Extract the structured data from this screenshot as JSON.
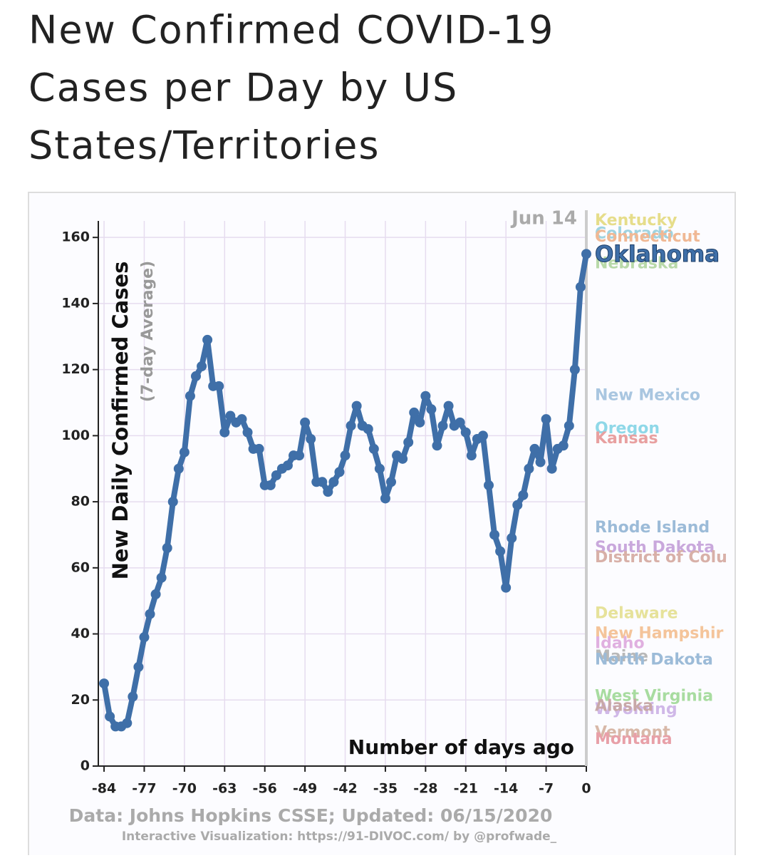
{
  "chart_data": {
    "type": "line",
    "title": [
      "New Confirmed COVID-19",
      "Cases per Day by US",
      "States/Territories"
    ],
    "ylabel": "New Daily Confirmed Cases",
    "ylabel_sub": "(7-day Average)",
    "xlabel": "Number of days ago",
    "date_annotation": "Jun 14",
    "source": "Data: Johns Hopkins CSSE; Updated: 06/15/2020",
    "credit": "Interactive Visualization: https://91-DIVOC.com/ by @profwade_",
    "xlim": [
      -85,
      0
    ],
    "ylim": [
      0,
      165
    ],
    "xticks": [
      -84,
      -77,
      -70,
      -63,
      -56,
      -49,
      -42,
      -35,
      -28,
      -21,
      -14,
      -7,
      0
    ],
    "yticks": [
      0,
      20,
      40,
      60,
      80,
      100,
      120,
      140,
      160
    ],
    "x": [
      -84,
      -83,
      -82,
      -81,
      -80,
      -79,
      -78,
      -77,
      -76,
      -75,
      -74,
      -73,
      -72,
      -71,
      -70,
      -69,
      -68,
      -67,
      -66,
      -65,
      -64,
      -63,
      -62,
      -61,
      -60,
      -59,
      -58,
      -57,
      -56,
      -55,
      -54,
      -53,
      -52,
      -51,
      -50,
      -49,
      -48,
      -47,
      -46,
      -45,
      -44,
      -43,
      -42,
      -41,
      -40,
      -39,
      -38,
      -37,
      -36,
      -35,
      -34,
      -33,
      -32,
      -31,
      -30,
      -29,
      -28,
      -27,
      -26,
      -25,
      -24,
      -23,
      -22,
      -21,
      -20,
      -19,
      -18,
      -17,
      -16,
      -15,
      -14,
      -13,
      -12,
      -11,
      -10,
      -9,
      -8,
      -7,
      -6,
      -5,
      -4,
      -3,
      -2,
      -1,
      0
    ],
    "series": [
      {
        "name": "Oklahoma",
        "color": "#3f6fa8",
        "values": [
          25,
          15,
          12,
          12,
          13,
          21,
          30,
          39,
          46,
          52,
          57,
          66,
          80,
          90,
          95,
          112,
          118,
          121,
          129,
          115,
          115,
          101,
          106,
          104,
          105,
          101,
          96,
          96,
          85,
          85,
          88,
          90,
          91,
          94,
          94,
          104,
          99,
          86,
          86,
          83,
          86,
          89,
          94,
          103,
          109,
          103,
          102,
          96,
          90,
          81,
          86,
          94,
          93,
          98,
          107,
          104,
          112,
          108,
          97,
          103,
          109,
          103,
          104,
          101,
          94,
          99,
          100,
          85,
          70,
          65,
          54,
          69,
          79,
          82,
          90,
          96,
          92,
          105,
          90,
          96,
          97,
          103,
          120,
          145,
          155
        ]
      }
    ],
    "other_states": [
      {
        "label": "Kentucky",
        "value": 165,
        "color": "#e6dd8a"
      },
      {
        "label": "Colorado",
        "value": 161,
        "color": "#9fd3e0"
      },
      {
        "label": "Connecticut",
        "value": 160,
        "color": "#f0b894"
      },
      {
        "label": "Nebraska",
        "value": 152,
        "color": "#b8d9a8"
      },
      {
        "label": "New Mexico",
        "value": 112,
        "color": "#a9c6e0"
      },
      {
        "label": "Oregon",
        "value": 102,
        "color": "#8fd8e8"
      },
      {
        "label": "Kansas",
        "value": 99,
        "color": "#e8a0a0"
      },
      {
        "label": "Rhode Island",
        "value": 72,
        "color": "#9cbbd8"
      },
      {
        "label": "South Dakota",
        "value": 66,
        "color": "#c9a8dc"
      },
      {
        "label": "District of Colu",
        "value": 63,
        "color": "#d8b0a8"
      },
      {
        "label": "Delaware",
        "value": 46,
        "color": "#e6e29a"
      },
      {
        "label": "New Hampshir",
        "value": 40,
        "color": "#f4c49a"
      },
      {
        "label": "Idaho",
        "value": 37,
        "color": "#e0b0e0"
      },
      {
        "label": "Maine",
        "value": 33,
        "color": "#b8b8b8"
      },
      {
        "label": "North Dakota",
        "value": 32,
        "color": "#9cbbd8"
      },
      {
        "label": "West Virginia",
        "value": 21,
        "color": "#a8dca0"
      },
      {
        "label": "Wyoming",
        "value": 17,
        "color": "#d0b8e8"
      },
      {
        "label": "Alaska",
        "value": 18,
        "color": "#c8a8a8"
      },
      {
        "label": "Vermont",
        "value": 10,
        "color": "#d8b8a8"
      },
      {
        "label": "Montana",
        "value": 8,
        "color": "#e8a0a8"
      }
    ]
  }
}
